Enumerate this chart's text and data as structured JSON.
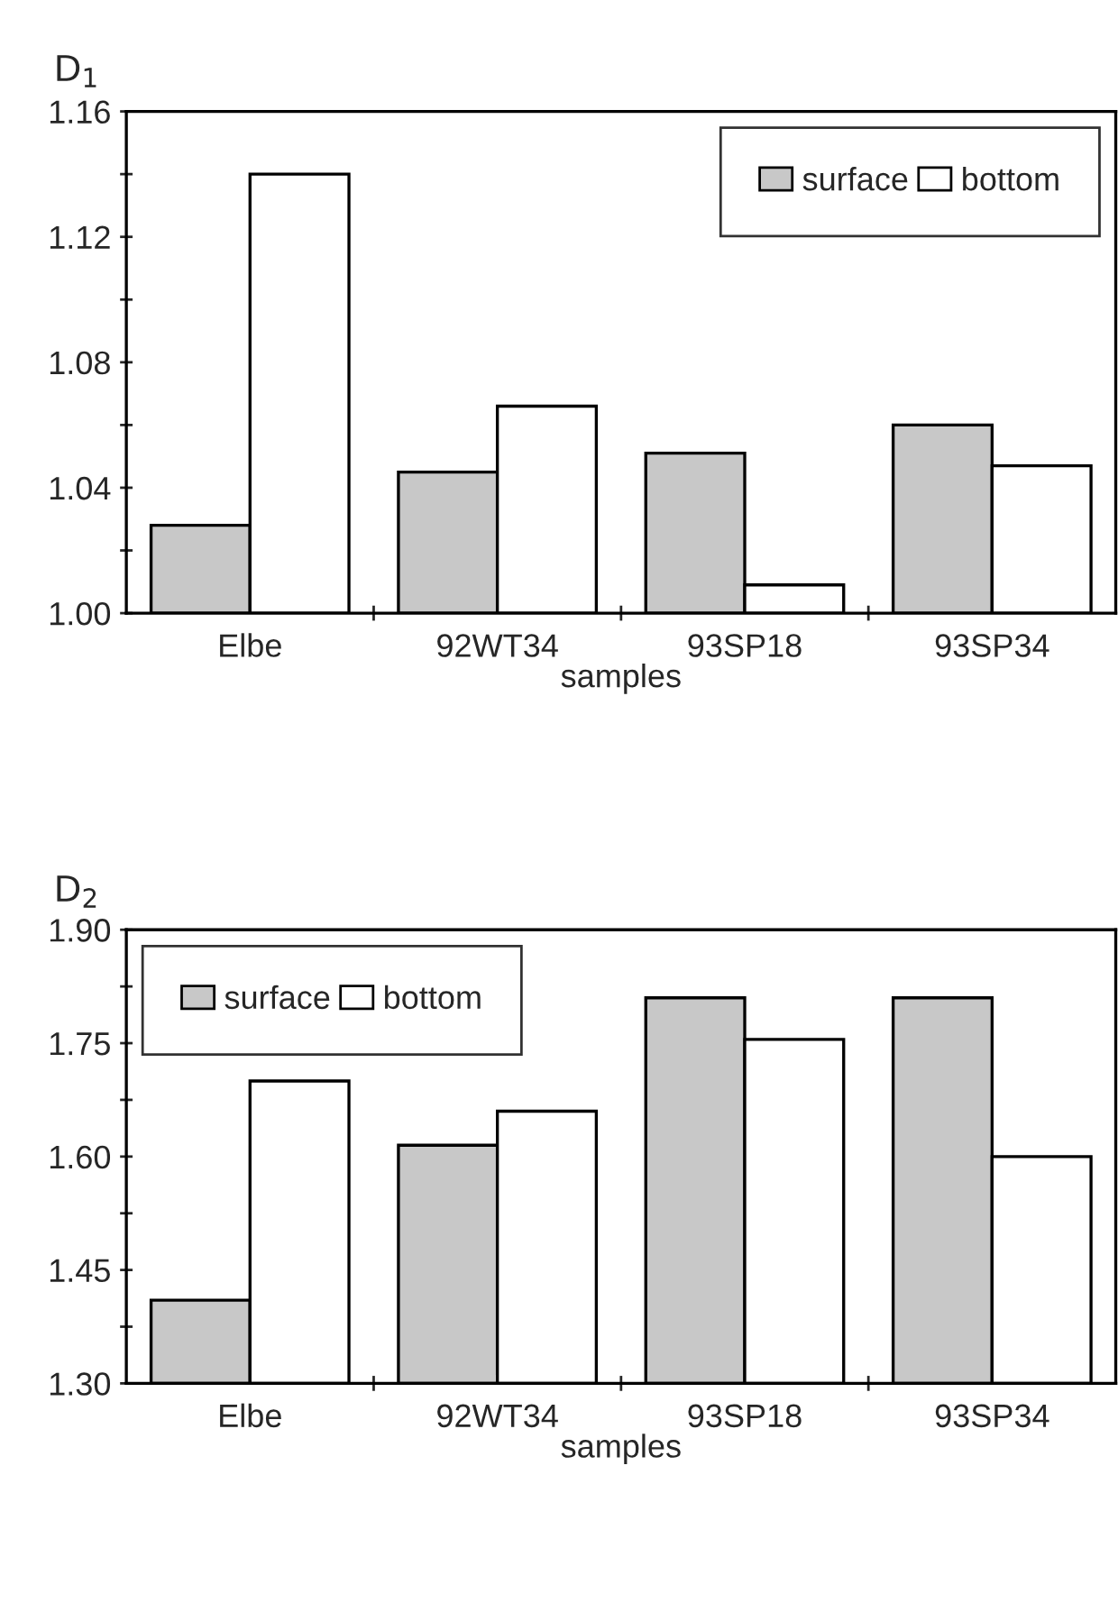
{
  "chart_data": [
    {
      "type": "bar",
      "ylabel": "D$_{1}$",
      "xlabel": "samples",
      "categories": [
        "Elbe",
        "92WT34",
        "93SP18",
        "93SP34"
      ],
      "series": [
        {
          "name": "surface",
          "color": "#c8c8c8",
          "values": [
            1.028,
            1.045,
            1.051,
            1.06
          ]
        },
        {
          "name": "bottom",
          "color": "#ffffff",
          "values": [
            1.14,
            1.066,
            1.009,
            1.047
          ]
        }
      ],
      "ylim": [
        1.0,
        1.16
      ],
      "yticks": [
        "1.00",
        {
          "value": 1.02,
          "label": null
        },
        {
          "value": 1.04,
          "label": "1.04"
        },
        {
          "value": 1.06,
          "label": null
        },
        {
          "value": 1.08,
          "label": "1.08"
        },
        {
          "value": 1.1,
          "label": null
        },
        {
          "value": 1.12,
          "label": "1.12"
        },
        {
          "value": 1.14,
          "label": null
        },
        {
          "value": 1.16,
          "label": "1.16"
        }
      ],
      "grid": false,
      "legend": "top right"
    },
    {
      "type": "bar",
      "ylabel": "D$_{2}$",
      "xlabel": "samples",
      "categories": [
        "Elbe",
        "92WT34",
        "93SP18",
        "93SP34"
      ],
      "series": [
        {
          "name": "surface",
          "color": "#c8c8c8",
          "values": [
            1.41,
            1.615,
            1.81,
            1.81
          ]
        },
        {
          "name": "bottom",
          "color": "#ffffff",
          "values": [
            1.7,
            1.66,
            1.755,
            1.6
          ]
        }
      ],
      "ylim": [
        1.3,
        1.9
      ],
      "yticks": [
        {
          "value": 1.3,
          "label": "1.30"
        },
        {
          "value": 1.375,
          "label": null
        },
        {
          "value": 1.45,
          "label": "1.45"
        },
        {
          "value": 1.525,
          "label": null
        },
        {
          "value": 1.6,
          "label": "1.60"
        },
        {
          "value": 1.675,
          "label": null
        },
        {
          "value": 1.75,
          "label": "1.75"
        },
        {
          "value": 1.825,
          "label": null
        },
        {
          "value": 1.9,
          "label": "1.90"
        }
      ],
      "grid": false,
      "legend": "top left"
    }
  ]
}
